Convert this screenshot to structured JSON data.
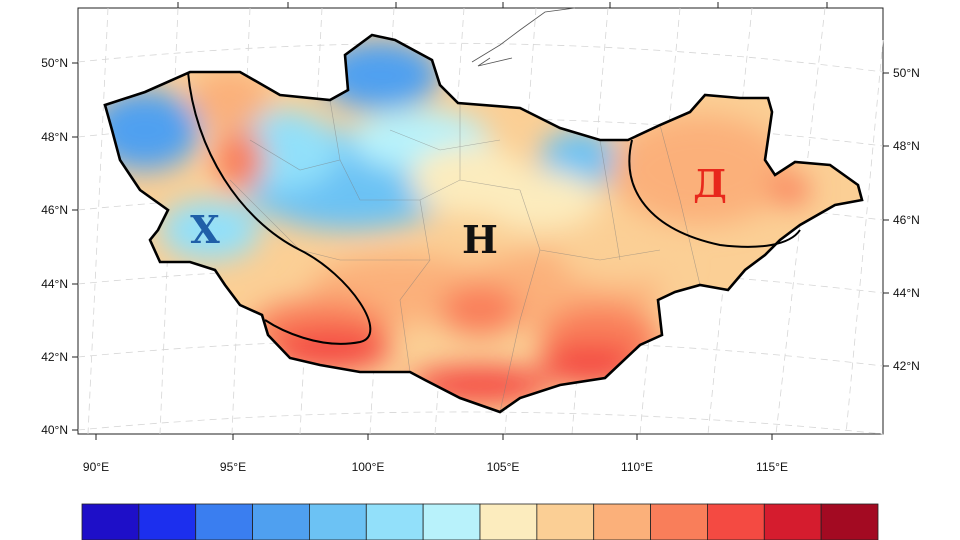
{
  "map": {
    "lat_labels_left": [
      "50°N",
      "48°N",
      "46°N",
      "44°N",
      "42°N",
      "40°N"
    ],
    "lat_labels_right": [
      "50°N",
      "48°N",
      "46°N",
      "44°N",
      "42°N"
    ],
    "lon_labels": [
      "90°E",
      "95°E",
      "100°E",
      "105°E",
      "110°E",
      "115°E"
    ],
    "regions": [
      {
        "label": "Х",
        "color": "#1f5fa8"
      },
      {
        "label": "Н",
        "color": "#111111"
      },
      {
        "label": "Д",
        "color": "#e8281c"
      }
    ]
  },
  "colorbar": {
    "colors": [
      "#1e0fc8",
      "#1c2fee",
      "#3a7ef0",
      "#4fa0f0",
      "#6cc2f4",
      "#92e0fa",
      "#b8f2fb",
      "#fcecbe",
      "#fbcf95",
      "#fbb07a",
      "#f97e5a",
      "#f44a42",
      "#d51c2e",
      "#a30a22"
    ]
  }
}
